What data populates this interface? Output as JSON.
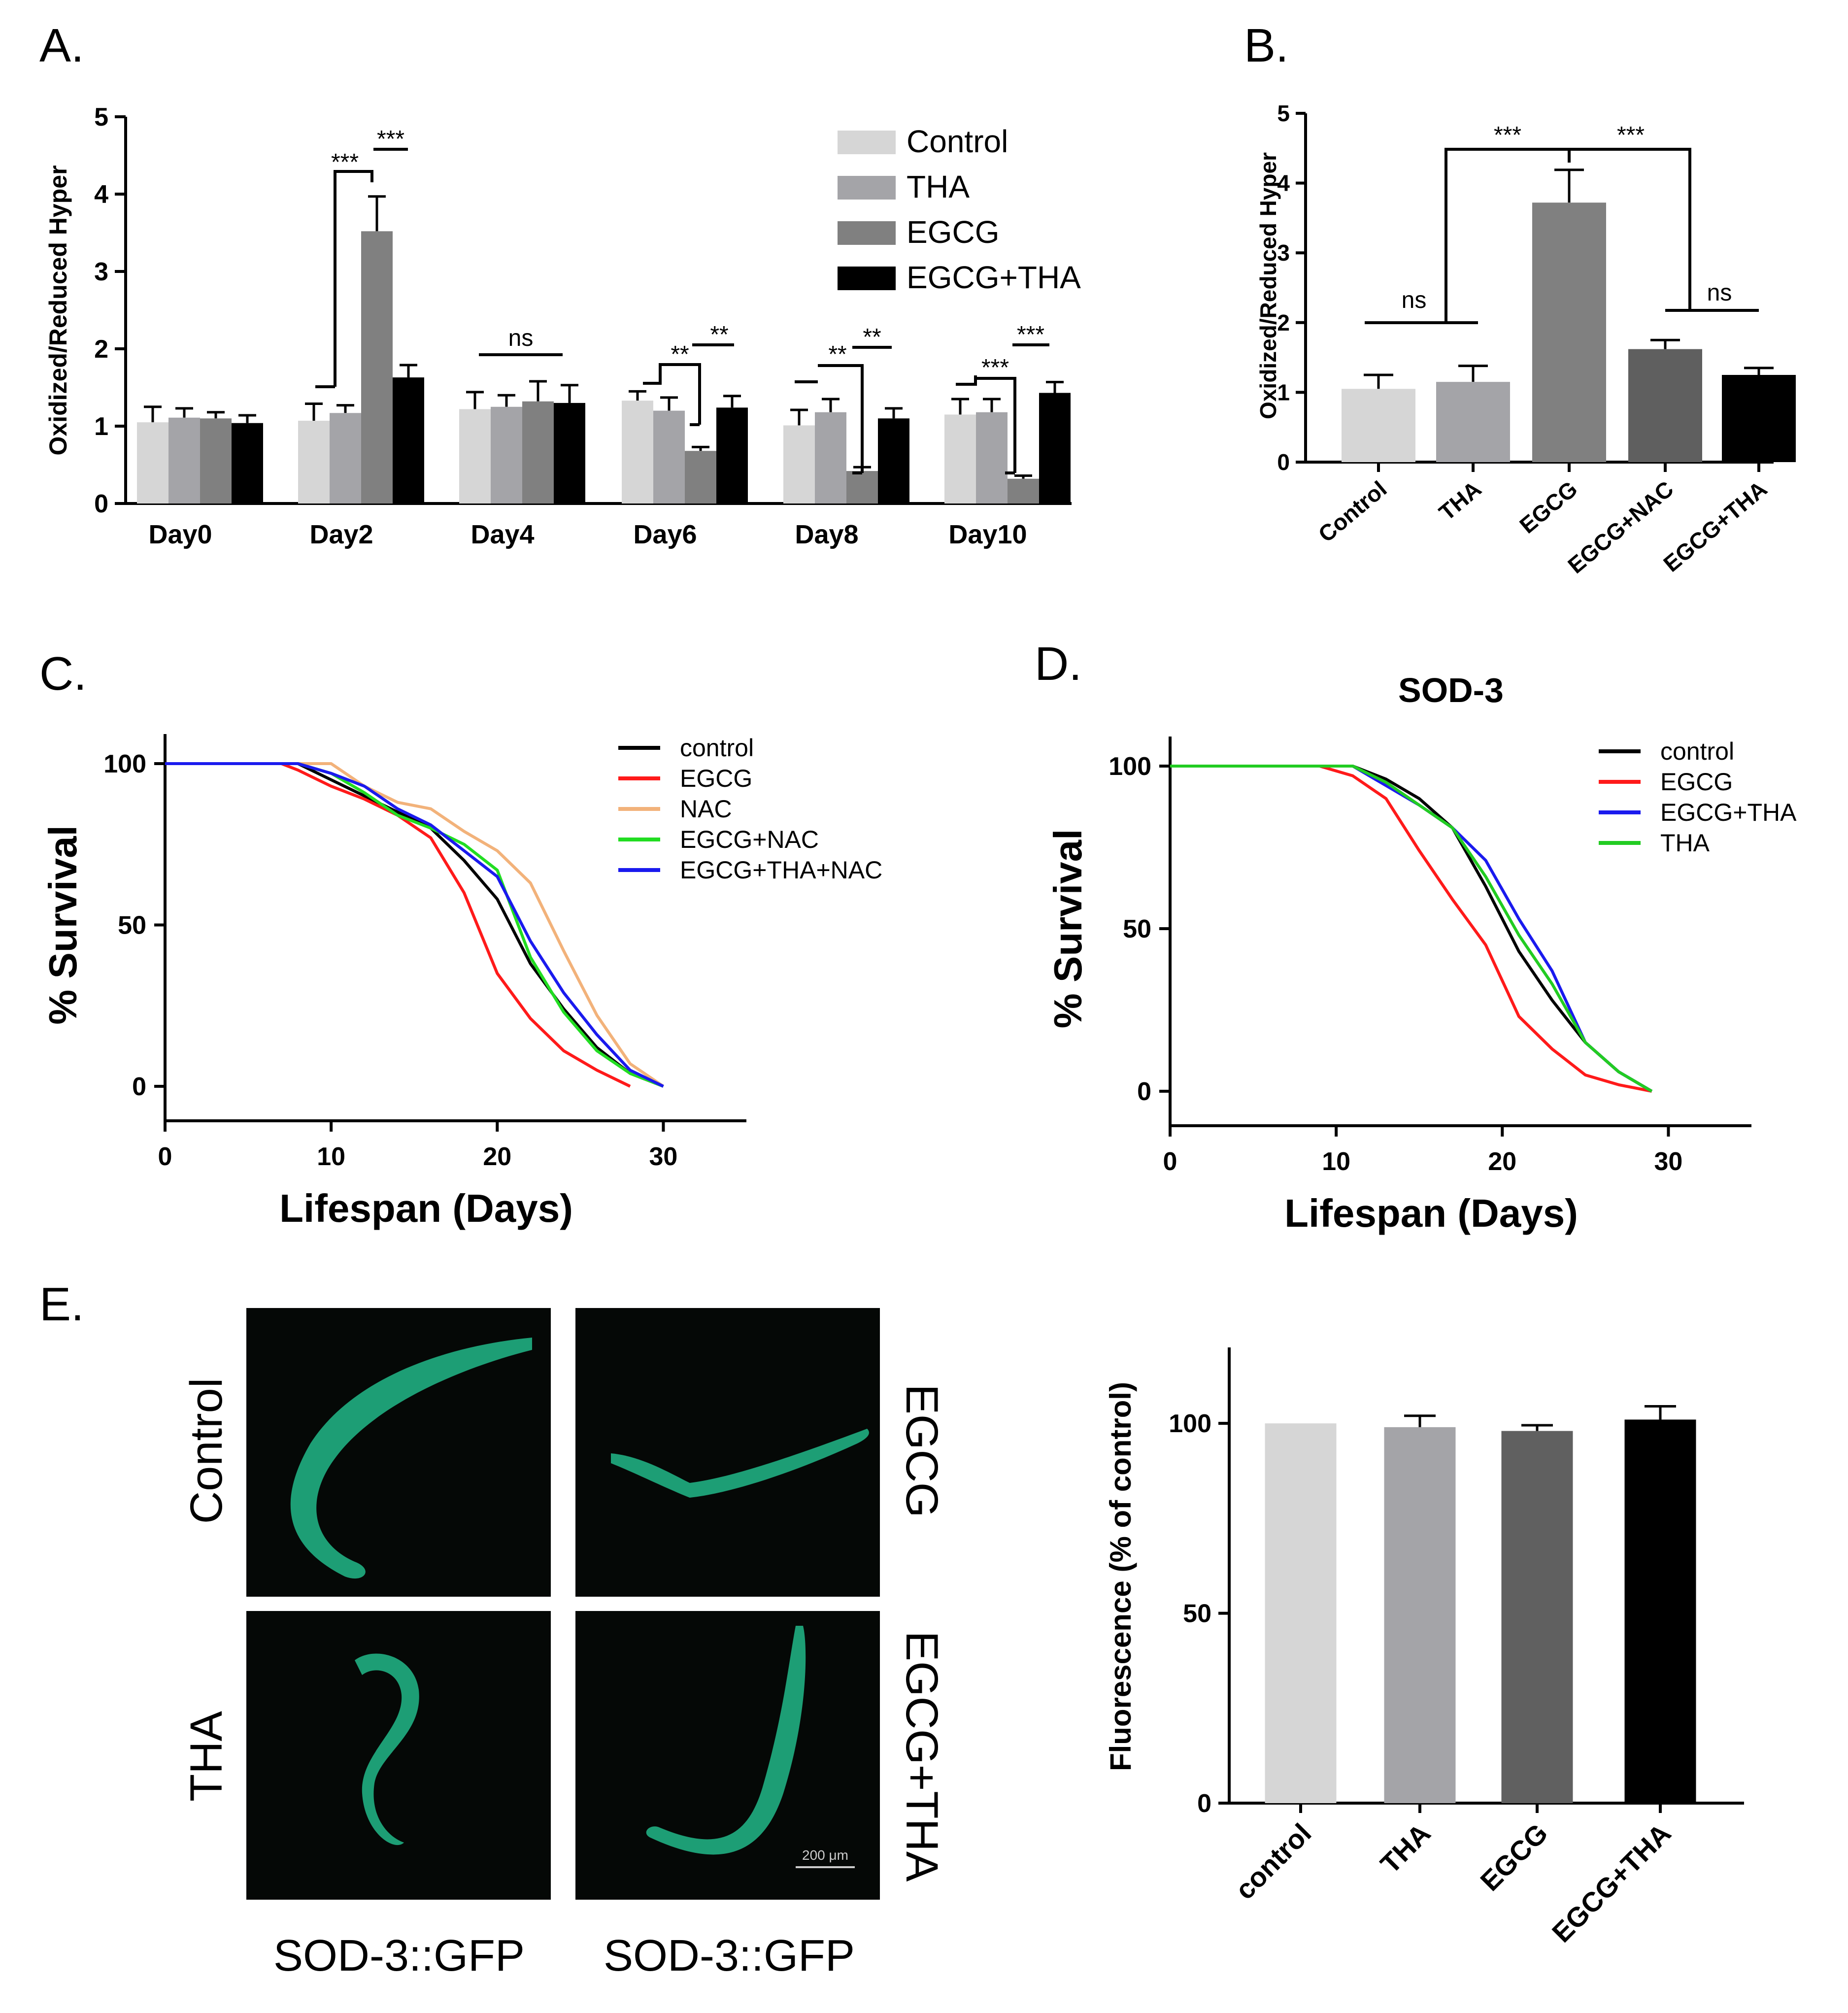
{
  "panels": {
    "A": {
      "label": "A."
    },
    "B": {
      "label": "B."
    },
    "C": {
      "label": "C."
    },
    "D": {
      "label": "D."
    },
    "E": {
      "label": "E."
    }
  },
  "colors": {
    "Control": "#d6d6d6",
    "THA": "#a4a4a8",
    "EGCG": "#808080",
    "EGCG+NAC": "#5f5f5f",
    "EGCG+THA": "#000000",
    "line_control": "#000000",
    "line_egcg": "#ff1a1a",
    "line_nac": "#f2b27a",
    "line_egcg_nac": "#22dd22",
    "line_egcg_tha_nac": "#1a1aee",
    "line_egcg_tha": "#1a1aee",
    "line_tha": "#22cc22",
    "gfp": "#2de0a0",
    "E_control": "#d6d6d6",
    "E_tha": "#a4a4a8",
    "E_egcg": "#606060",
    "E_egcg_tha": "#000000"
  },
  "chart_data": [
    {
      "id": "A",
      "type": "bar",
      "ylabel": "Oxidized/Reduced Hyper",
      "ylim": [
        0,
        5
      ],
      "yticks": [
        "0",
        "1",
        "2",
        "3",
        "4",
        "5"
      ],
      "categories": [
        "Day0",
        "Day2",
        "Day4",
        "Day6",
        "Day8",
        "Day10"
      ],
      "series": [
        {
          "name": "Control",
          "values": [
            1.05,
            1.07,
            1.22,
            1.33,
            1.01,
            1.15
          ],
          "errors": [
            0.2,
            0.22,
            0.22,
            0.12,
            0.2,
            0.2
          ]
        },
        {
          "name": "THA",
          "values": [
            1.11,
            1.17,
            1.25,
            1.2,
            1.18,
            1.18
          ],
          "errors": [
            0.12,
            0.1,
            0.15,
            0.17,
            0.17,
            0.17
          ]
        },
        {
          "name": "EGCG",
          "values": [
            1.1,
            3.52,
            1.32,
            0.68,
            0.42,
            0.32
          ],
          "errors": [
            0.08,
            0.45,
            0.26,
            0.05,
            0.05,
            0.04
          ]
        },
        {
          "name": "EGCG+THA",
          "values": [
            1.04,
            1.63,
            1.3,
            1.24,
            1.1,
            1.43
          ],
          "errors": [
            0.1,
            0.16,
            0.23,
            0.15,
            0.13,
            0.14
          ]
        }
      ],
      "legend": [
        "Control",
        "THA",
        "EGCG",
        "EGCG+THA"
      ],
      "annotations": [
        "***",
        "***",
        "ns",
        "**",
        "**",
        "**",
        "**",
        "***",
        "***"
      ]
    },
    {
      "id": "B",
      "type": "bar",
      "ylabel": "Oxidized/Reduced Hyper",
      "ylim": [
        0,
        5
      ],
      "yticks": [
        "0",
        "1",
        "2",
        "3",
        "4",
        "5"
      ],
      "categories": [
        "Control",
        "THA",
        "EGCG",
        "EGCG+NAC",
        "EGCG+THA"
      ],
      "values": [
        1.05,
        1.15,
        3.72,
        1.62,
        1.25
      ],
      "errors": [
        0.2,
        0.23,
        0.47,
        0.13,
        0.1
      ],
      "annotations": [
        "ns",
        "***",
        "***",
        "ns"
      ]
    },
    {
      "id": "C",
      "type": "line",
      "xlabel": "Lifespan (Days)",
      "ylabel": "% Survival",
      "xlim": [
        0,
        35
      ],
      "ylim": [
        -10,
        110
      ],
      "xticks": [
        "0",
        "10",
        "20",
        "30"
      ],
      "yticks": [
        "0",
        "50",
        "100"
      ],
      "series": [
        {
          "name": "control",
          "x": [
            0,
            8,
            10,
            12,
            14,
            16,
            18,
            20,
            22,
            24,
            26,
            28,
            30
          ],
          "y": [
            100,
            100,
            95,
            90,
            85,
            80,
            70,
            58,
            38,
            24,
            12,
            4,
            0
          ]
        },
        {
          "name": "EGCG",
          "x": [
            0,
            7,
            8,
            10,
            12,
            14,
            16,
            18,
            20,
            22,
            24,
            26,
            28
          ],
          "y": [
            100,
            100,
            98,
            93,
            89,
            84,
            77,
            60,
            35,
            21,
            11,
            5,
            0
          ]
        },
        {
          "name": "NAC",
          "x": [
            0,
            9,
            10,
            12,
            14,
            16,
            18,
            20,
            22,
            24,
            26,
            28,
            30
          ],
          "y": [
            100,
            100,
            100,
            93,
            88,
            86,
            79,
            73,
            63,
            42,
            22,
            7,
            0
          ]
        },
        {
          "name": "EGCG+NAC",
          "x": [
            0,
            8,
            10,
            12,
            14,
            16,
            18,
            20,
            22,
            24,
            26,
            28,
            30
          ],
          "y": [
            100,
            100,
            97,
            91,
            84,
            80,
            75,
            67,
            40,
            23,
            11,
            4,
            0
          ]
        },
        {
          "name": "EGCG+THA+NAC",
          "x": [
            0,
            8,
            10,
            12,
            14,
            16,
            18,
            20,
            22,
            24,
            26,
            28,
            30
          ],
          "y": [
            100,
            100,
            97,
            93,
            86,
            81,
            73,
            65,
            45,
            29,
            16,
            5,
            0
          ]
        }
      ]
    },
    {
      "id": "D",
      "type": "line",
      "title": "SOD-3",
      "xlabel": "Lifespan (Days)",
      "ylabel": "% Survival",
      "xlim": [
        0,
        35
      ],
      "ylim": [
        -10,
        110
      ],
      "xticks": [
        "0",
        "10",
        "20",
        "30"
      ],
      "yticks": [
        "0",
        "50",
        "100"
      ],
      "series": [
        {
          "name": "control",
          "x": [
            0,
            11,
            13,
            15,
            17,
            19,
            21,
            23,
            25,
            27,
            29
          ],
          "y": [
            100,
            100,
            96,
            90,
            81,
            63,
            43,
            28,
            15,
            6,
            0
          ]
        },
        {
          "name": "EGCG",
          "x": [
            0,
            9,
            11,
            13,
            15,
            17,
            19,
            21,
            23,
            25,
            27,
            29
          ],
          "y": [
            100,
            100,
            97,
            90,
            74,
            59,
            45,
            23,
            13,
            5,
            2,
            0
          ]
        },
        {
          "name": "EGCG+THA",
          "x": [
            0,
            11,
            13,
            15,
            17,
            19,
            21,
            23,
            25,
            27,
            29
          ],
          "y": [
            100,
            100,
            94,
            88,
            81,
            71,
            53,
            37,
            15,
            6,
            0
          ]
        },
        {
          "name": "THA",
          "x": [
            0,
            11,
            13,
            15,
            17,
            19,
            21,
            23,
            25,
            27,
            29
          ],
          "y": [
            100,
            100,
            95,
            88,
            81,
            66,
            48,
            33,
            15,
            6,
            0
          ]
        }
      ]
    },
    {
      "id": "E",
      "type": "bar",
      "ylabel": "Fluorescence (% of control)",
      "ylim": [
        0,
        120
      ],
      "yticks": [
        "0",
        "50",
        "100"
      ],
      "categories": [
        "control",
        "THA",
        "EGCG",
        "EGCG+THA"
      ],
      "values": [
        100,
        99,
        98,
        101
      ],
      "errors": [
        0,
        3,
        1.5,
        3.5
      ]
    }
  ],
  "micrographs": {
    "labels": [
      "Control",
      "EGCG",
      "THA",
      "EGCG+THA"
    ],
    "captions": [
      "SOD-3::GFP",
      "SOD-3::GFP"
    ],
    "scale_bar": "200 μm"
  }
}
